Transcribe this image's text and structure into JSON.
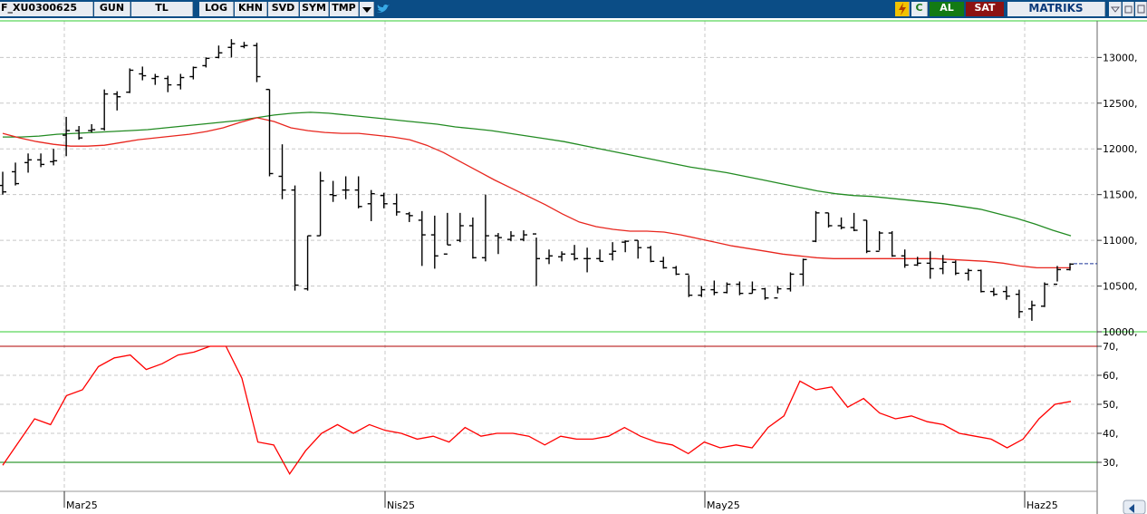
{
  "toolbar": {
    "symbol": "F_XU0300625",
    "period": "GUN",
    "currency": "TL",
    "buttons": [
      "LOG",
      "KHN",
      "SVD",
      "SYM",
      "TMP"
    ],
    "buy_label": "AL",
    "sell_label": "SAT",
    "brand": "MATRIKS",
    "refresh_label": "C",
    "icons": [
      "dropdown-arrow-icon",
      "twitter-icon",
      "lightning-icon",
      "minimize-icon",
      "restore-icon",
      "expand-icon"
    ]
  },
  "colors": {
    "toolbar_bg": "#0b4d86",
    "buy_bg": "#137a13",
    "sell_bg": "#8c1212",
    "ma_short": "#e8261e",
    "ma_long": "#228b22",
    "rsi": "#ff0000",
    "overbought": "#b00000",
    "oversold": "#008000",
    "last_price": "#1a3399"
  },
  "chart_data": [
    {
      "type": "ohlc",
      "x_labels": [
        "Mar25",
        "Nis25",
        "May25",
        "Haz25"
      ],
      "ylim": [
        10000,
        13400
      ],
      "y_ticks": [
        "10000,",
        "10500,",
        "11000,",
        "11500,",
        "12000,",
        "12500,",
        "13000,"
      ],
      "bars": [
        [
          11600,
          11500,
          11750,
          11530
        ],
        [
          11750,
          11600,
          11850,
          11620
        ],
        [
          11850,
          11740,
          11950,
          11880
        ],
        [
          11880,
          11800,
          11950,
          11830
        ],
        [
          11860,
          11820,
          12000,
          11870
        ],
        [
          12150,
          11920,
          12350,
          12200
        ],
        [
          12200,
          12100,
          12250,
          12120
        ],
        [
          12200,
          12180,
          12270,
          12210
        ],
        [
          12220,
          12200,
          12650,
          12600
        ],
        [
          12600,
          12420,
          12630,
          12570
        ],
        [
          12620,
          12610,
          12880,
          12860
        ],
        [
          12820,
          12750,
          12900,
          12800
        ],
        [
          12770,
          12700,
          12820,
          12790
        ],
        [
          12770,
          12620,
          12800,
          12700
        ],
        [
          12700,
          12650,
          12820,
          12780
        ],
        [
          12790,
          12760,
          12900,
          12890
        ],
        [
          12910,
          12890,
          13000,
          12990
        ],
        [
          13000,
          12990,
          13130,
          13050
        ],
        [
          13110,
          13000,
          13200,
          13150
        ],
        [
          13120,
          13100,
          13170,
          13130
        ],
        [
          13130,
          12730,
          13160,
          12790
        ],
        [
          12650,
          11700,
          12650,
          11730
        ],
        [
          11700,
          11450,
          12050,
          11550
        ],
        [
          11550,
          10450,
          11600,
          10510
        ],
        [
          10470,
          10450,
          11050,
          11050
        ],
        [
          11050,
          11050,
          11750,
          11650
        ],
        [
          11500,
          11420,
          11650,
          11490
        ],
        [
          11550,
          11450,
          11700,
          11550
        ],
        [
          11550,
          11350,
          11700,
          11370
        ],
        [
          11400,
          11210,
          11550,
          11510
        ],
        [
          11490,
          11350,
          11520,
          11400
        ],
        [
          11400,
          11270,
          11510,
          11310
        ],
        [
          11290,
          11200,
          11310,
          11270
        ],
        [
          11220,
          10720,
          11320,
          11060
        ],
        [
          11060,
          10690,
          11270,
          10830
        ],
        [
          10850,
          10950,
          11300,
          10950
        ],
        [
          11000,
          10980,
          11300,
          11160
        ],
        [
          11160,
          10800,
          11250,
          10810
        ],
        [
          10810,
          10770,
          11500,
          11050
        ],
        [
          11050,
          10850,
          11080,
          11030
        ],
        [
          11010,
          10990,
          11100,
          11050
        ],
        [
          11010,
          10990,
          11110,
          11060
        ],
        [
          11070,
          10500,
          11030,
          10800
        ],
        [
          10800,
          10740,
          10900,
          10830
        ],
        [
          10820,
          10770,
          10880,
          10850
        ],
        [
          10850,
          10780,
          10950,
          10800
        ],
        [
          10800,
          10650,
          10920,
          10800
        ],
        [
          10800,
          10770,
          10900,
          10770
        ],
        [
          10850,
          10780,
          10980,
          10880
        ],
        [
          10980,
          10870,
          11000,
          10990
        ],
        [
          11000,
          10800,
          11000,
          10920
        ],
        [
          10920,
          10760,
          10940,
          10770
        ],
        [
          10770,
          10690,
          10820,
          10700
        ],
        [
          10700,
          10620,
          10720,
          10630
        ],
        [
          10630,
          10380,
          10620,
          10400
        ],
        [
          10400,
          10380,
          10500,
          10460
        ],
        [
          10460,
          10400,
          10560,
          10430
        ],
        [
          10430,
          10420,
          10540,
          10520
        ],
        [
          10520,
          10400,
          10550,
          10420
        ],
        [
          10420,
          10420,
          10550,
          10460
        ],
        [
          10470,
          10350,
          10480,
          10370
        ],
        [
          10370,
          10420,
          10500,
          10470
        ],
        [
          10470,
          10440,
          10650,
          10630
        ],
        [
          10630,
          10500,
          10800,
          10790
        ],
        [
          10990,
          10980,
          11320,
          11300
        ],
        [
          11300,
          11140,
          11300,
          11160
        ],
        [
          11160,
          11120,
          11250,
          11140
        ],
        [
          11140,
          11100,
          11300,
          11110
        ],
        [
          11220,
          10860,
          11220,
          10880
        ],
        [
          10880,
          10890,
          11100,
          11080
        ],
        [
          11080,
          10820,
          11100,
          10830
        ],
        [
          10830,
          10700,
          10900,
          10730
        ],
        [
          10730,
          10720,
          10820,
          10750
        ],
        [
          10750,
          10580,
          10880,
          10690
        ],
        [
          10690,
          10630,
          10840,
          10760
        ],
        [
          10760,
          10620,
          10780,
          10640
        ],
        [
          10640,
          10560,
          10690,
          10670
        ],
        [
          10670,
          10430,
          10680,
          10440
        ],
        [
          10440,
          10390,
          10480,
          10410
        ],
        [
          10440,
          10350,
          10500,
          10390
        ],
        [
          10410,
          10150,
          10460,
          10220
        ],
        [
          10250,
          10120,
          10340,
          10290
        ],
        [
          10280,
          10270,
          10540,
          10520
        ],
        [
          10520,
          10550,
          10720,
          10680
        ],
        [
          10680,
          10670,
          10750,
          10740
        ]
      ],
      "last_price": 10745,
      "series": [
        {
          "values": [
            12170,
            12120,
            12080,
            12050,
            12030,
            12030,
            12040,
            12070,
            12100,
            12120,
            12140,
            12160,
            12190,
            12230,
            12290,
            12340,
            12300,
            12230,
            12200,
            12180,
            12170,
            12170,
            12150,
            12130,
            12100,
            12040,
            11960,
            11860,
            11760,
            11660,
            11570,
            11480,
            11390,
            11290,
            11200,
            11150,
            11120,
            11100,
            11100,
            11090,
            11060,
            11020,
            10980,
            10940,
            10910,
            10880,
            10850,
            10830,
            10810,
            10800,
            10800,
            10800,
            10800,
            10800,
            10800,
            10800,
            10790,
            10780,
            10770,
            10750,
            10720,
            10700,
            10700,
            10700
          ]
        },
        {
          "values": [
            12130,
            12130,
            12140,
            12160,
            12170,
            12180,
            12190,
            12200,
            12210,
            12230,
            12250,
            12270,
            12290,
            12310,
            12340,
            12370,
            12390,
            12400,
            12390,
            12370,
            12350,
            12330,
            12310,
            12290,
            12270,
            12240,
            12220,
            12200,
            12170,
            12140,
            12110,
            12080,
            12040,
            12000,
            11960,
            11920,
            11880,
            11840,
            11800,
            11770,
            11740,
            11700,
            11660,
            11620,
            11580,
            11540,
            11510,
            11490,
            11480,
            11460,
            11440,
            11420,
            11400,
            11370,
            11340,
            11290,
            11240,
            11180,
            11110,
            11050
          ]
        }
      ]
    },
    {
      "type": "line",
      "ylim": [
        20,
        75
      ],
      "y_ticks": [
        "30,",
        "40,",
        "50,",
        "60,",
        "70,"
      ],
      "overbought": 70,
      "oversold": 30,
      "series": [
        {
          "values": [
            29,
            37,
            45,
            43,
            53,
            55,
            63,
            66,
            67,
            62,
            64,
            67,
            68,
            70,
            70,
            59,
            37,
            36,
            26,
            34,
            40,
            43,
            40,
            43,
            41,
            40,
            38,
            39,
            37,
            42,
            39,
            40,
            40,
            39,
            36,
            39,
            38,
            38,
            39,
            42,
            39,
            37,
            36,
            33,
            37,
            35,
            36,
            35,
            42,
            46,
            58,
            55,
            56,
            49,
            52,
            47,
            45,
            46,
            44,
            43,
            40,
            39,
            38,
            35,
            38,
            45,
            50,
            51
          ]
        }
      ]
    }
  ]
}
